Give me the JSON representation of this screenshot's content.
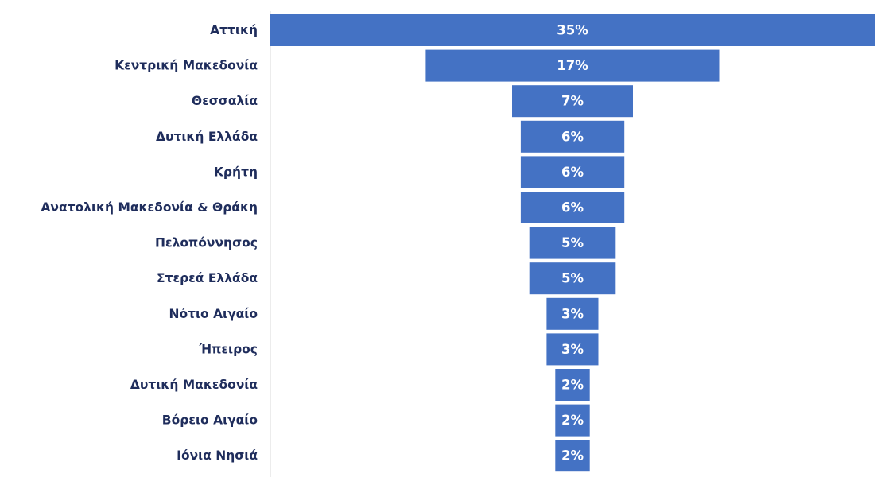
{
  "chart_data": {
    "type": "bar",
    "orientation": "horizontal",
    "style": "funnel",
    "categories": [
      "Αττική",
      "Κεντρική Μακεδονία",
      "Θεσσαλία",
      "Δυτική Ελλάδα",
      "Κρήτη",
      "Ανατολική Μακεδονία & Θράκη",
      "Πελοπόννησος",
      "Στερεά Ελλάδα",
      "Νότιο Αιγαίο",
      "Ήπειρος",
      "Δυτική Μακεδονία",
      "Βόρειο Αιγαίο",
      "Ιόνια Νησιά"
    ],
    "values": [
      35,
      17,
      7,
      6,
      6,
      6,
      5,
      5,
      3,
      3,
      2,
      2,
      2
    ],
    "data_labels": [
      "35%",
      "17%",
      "7%",
      "6%",
      "6%",
      "6%",
      "5%",
      "5%",
      "3%",
      "3%",
      "2%",
      "2%",
      "2%"
    ],
    "unit": "%",
    "title": "",
    "xlabel": "",
    "ylabel": "",
    "grid": false,
    "legend": "none",
    "colors": {
      "bar": "#4472c4",
      "category_text": "#1f2d5c",
      "value_text": "#ffffff",
      "axis_line": "#d9d9d9"
    }
  }
}
